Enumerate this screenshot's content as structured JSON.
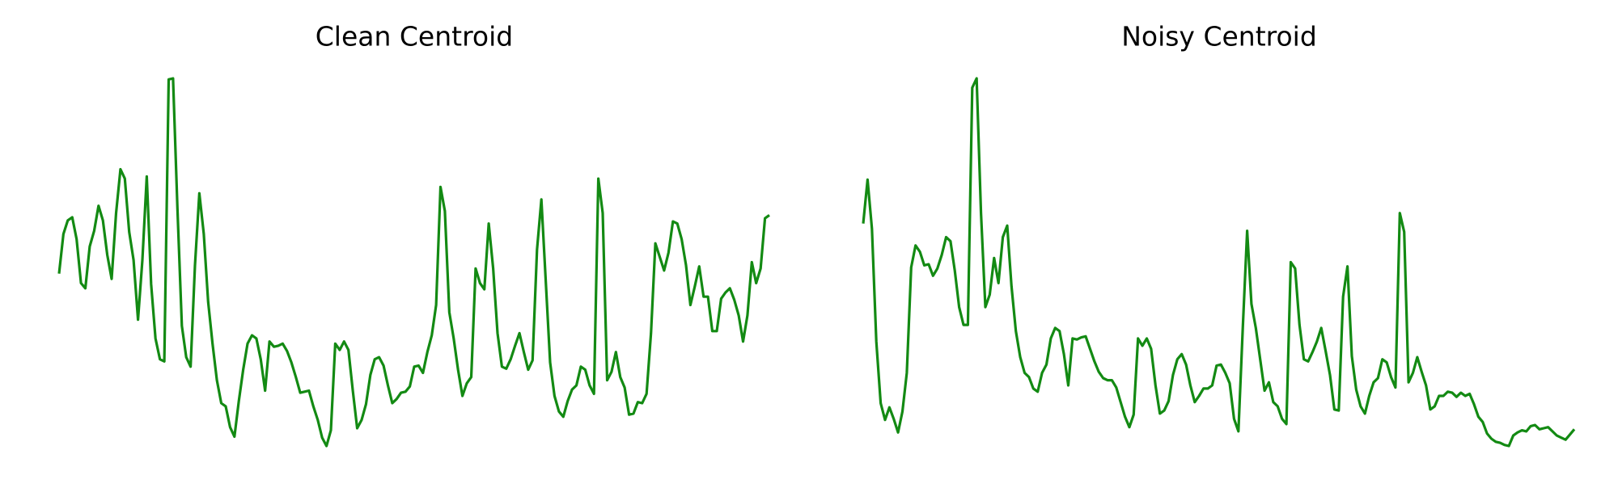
{
  "chart_data": [
    {
      "type": "line",
      "title": "Clean Centroid",
      "color": "#138a13",
      "values": [
        167,
        205,
        218,
        221,
        200,
        158,
        153,
        193,
        208,
        232,
        218,
        185,
        162,
        225,
        267,
        258,
        207,
        180,
        123,
        180,
        260,
        157,
        105,
        85,
        83,
        353,
        354,
        230,
        117,
        87,
        78,
        175,
        244,
        205,
        140,
        100,
        65,
        43,
        40,
        20,
        11,
        45,
        75,
        100,
        108,
        105,
        85,
        55,
        102,
        97,
        98,
        100,
        93,
        82,
        68,
        53,
        54,
        55,
        40,
        27,
        10,
        2,
        17,
        100,
        94,
        102,
        94,
        55,
        19,
        27,
        42,
        70,
        85,
        87,
        79,
        60,
        43,
        47,
        53,
        54,
        59,
        78,
        79,
        72,
        92,
        108,
        137,
        250,
        227,
        130,
        105,
        75,
        50,
        62,
        68,
        172,
        158,
        152,
        215,
        172,
        110,
        78,
        76,
        85,
        98,
        110,
        92,
        75,
        84,
        190,
        238,
        160,
        82,
        50,
        35,
        30,
        45,
        56,
        60,
        78,
        75,
        60,
        52,
        258,
        225,
        65,
        73,
        92,
        68,
        58,
        32,
        33,
        44,
        43,
        52,
        110,
        196,
        183,
        170,
        187,
        217,
        215,
        200,
        175,
        137,
        155,
        174,
        145,
        145,
        112,
        112,
        143,
        149,
        153,
        142,
        127,
        102,
        127,
        178,
        158,
        172,
        220,
        223
      ]
    },
    {
      "type": "line",
      "title": "Noisy Centroid",
      "color": "#138a13",
      "values": [
        215,
        257,
        210,
        102,
        43,
        27,
        39,
        28,
        15,
        35,
        72,
        173,
        194,
        188,
        175,
        176,
        165,
        172,
        185,
        202,
        198,
        170,
        135,
        118,
        118,
        345,
        354,
        225,
        135,
        147,
        182,
        158,
        202,
        213,
        155,
        112,
        87,
        72,
        68,
        57,
        54,
        72,
        80,
        105,
        115,
        112,
        90,
        60,
        105,
        104,
        106,
        107,
        95,
        83,
        73,
        67,
        65,
        65,
        58,
        44,
        30,
        20,
        32,
        105,
        98,
        105,
        95,
        60,
        33,
        36,
        45,
        70,
        85,
        90,
        80,
        60,
        44,
        50,
        57,
        57,
        60,
        79,
        80,
        72,
        62,
        28,
        16,
        115,
        208,
        138,
        115,
        85,
        55,
        63,
        44,
        40,
        28,
        23,
        178,
        172,
        118,
        85,
        83,
        92,
        102,
        115,
        93,
        70,
        37,
        36,
        145,
        174,
        88,
        56,
        40,
        33,
        50,
        63,
        67,
        85,
        82,
        68,
        58,
        225,
        207,
        63,
        72,
        87,
        73,
        60,
        37,
        40,
        50,
        50,
        54,
        53,
        49,
        53,
        50,
        52,
        42,
        30,
        25,
        14,
        9,
        6,
        5,
        3,
        2,
        12,
        15,
        17,
        16,
        21,
        22,
        18,
        19,
        20,
        16,
        12,
        10,
        8,
        13,
        18
      ]
    }
  ]
}
